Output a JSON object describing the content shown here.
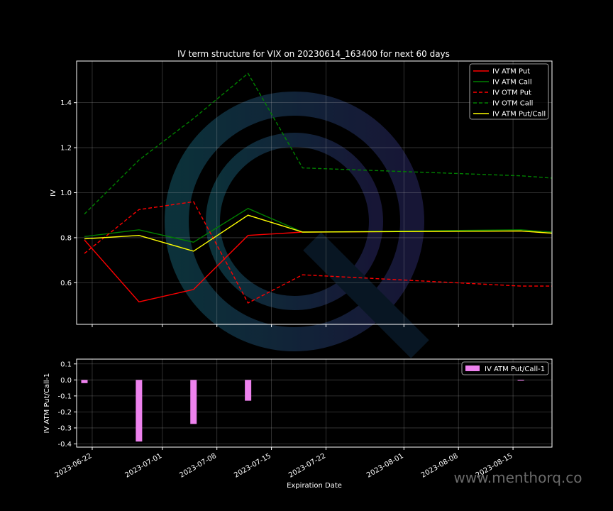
{
  "watermark": "www.menthorq.co",
  "chart_data": [
    {
      "type": "line",
      "title": "IV term structure for VIX on 20230614_163400 for next 60 days",
      "xlabel": "",
      "ylabel": "IV",
      "x": [
        "2023-06-21",
        "2023-06-28",
        "2023-07-05",
        "2023-07-12",
        "2023-07-19",
        "2023-08-16",
        "2023-08-20"
      ],
      "xlim": [
        "2023-06-20",
        "2023-08-20"
      ],
      "ylim": [
        0.415,
        1.585
      ],
      "yticks": [
        0.6,
        0.8,
        1.0,
        1.2,
        1.4
      ],
      "ytick_labels": [
        "0.6",
        "0.8",
        "1.0",
        "1.2",
        "1.4"
      ],
      "xticks": [
        "2023-06-22",
        "2023-07-01",
        "2023-07-08",
        "2023-07-15",
        "2023-07-22",
        "2023-08-01",
        "2023-08-08",
        "2023-08-15"
      ],
      "grid": true,
      "legend_position": "top-right",
      "series": [
        {
          "name": "IV ATM Put",
          "color": "#ff0000",
          "style": "solid",
          "values": [
            0.79,
            0.515,
            0.57,
            0.81,
            0.825,
            0.83,
            0.82
          ]
        },
        {
          "name": "IV ATM Call",
          "color": "#008000",
          "style": "solid",
          "values": [
            0.805,
            0.835,
            0.78,
            0.93,
            0.825,
            0.835,
            0.825
          ]
        },
        {
          "name": "IV OTM Put",
          "color": "#ff0000",
          "style": "dashed",
          "values": [
            0.73,
            0.925,
            0.96,
            0.51,
            0.635,
            0.585,
            0.585
          ]
        },
        {
          "name": "IV OTM Call",
          "color": "#008000",
          "style": "dashed",
          "values": [
            0.905,
            1.145,
            1.33,
            1.53,
            1.11,
            1.075,
            1.065
          ]
        },
        {
          "name": "IV ATM Put/Call",
          "color": "#ffff00",
          "style": "solid",
          "values": [
            0.795,
            0.81,
            0.74,
            0.9,
            0.825,
            0.83,
            0.82
          ]
        }
      ]
    },
    {
      "type": "bar",
      "xlabel": "Expiration Date",
      "ylabel": "IV ATM Put/Call-1",
      "x": [
        "2023-06-21",
        "2023-06-28",
        "2023-07-05",
        "2023-07-12",
        "2023-08-16"
      ],
      "xlim": [
        "2023-06-20",
        "2023-08-20"
      ],
      "ylim": [
        -0.42,
        0.13
      ],
      "yticks": [
        0.1,
        0.0,
        -0.1,
        -0.2,
        -0.3,
        -0.4
      ],
      "ytick_labels": [
        "0.1",
        "0.0",
        "-0.1",
        "-0.2",
        "-0.3",
        "-0.4"
      ],
      "xticks": [
        "2023-06-22",
        "2023-07-01",
        "2023-07-08",
        "2023-07-15",
        "2023-07-22",
        "2023-08-01",
        "2023-08-08",
        "2023-08-15"
      ],
      "xtick_labels": [
        "2023-06-22",
        "2023-07-01",
        "2023-07-08",
        "2023-07-15",
        "2023-07-22",
        "2023-08-01",
        "2023-08-08",
        "2023-08-15"
      ],
      "grid": true,
      "legend_position": "top-right",
      "series": [
        {
          "name": "IV ATM Put/Call-1",
          "color": "#ee82ee",
          "values": [
            -0.02,
            -0.385,
            -0.275,
            -0.13,
            -0.005
          ]
        }
      ]
    }
  ]
}
